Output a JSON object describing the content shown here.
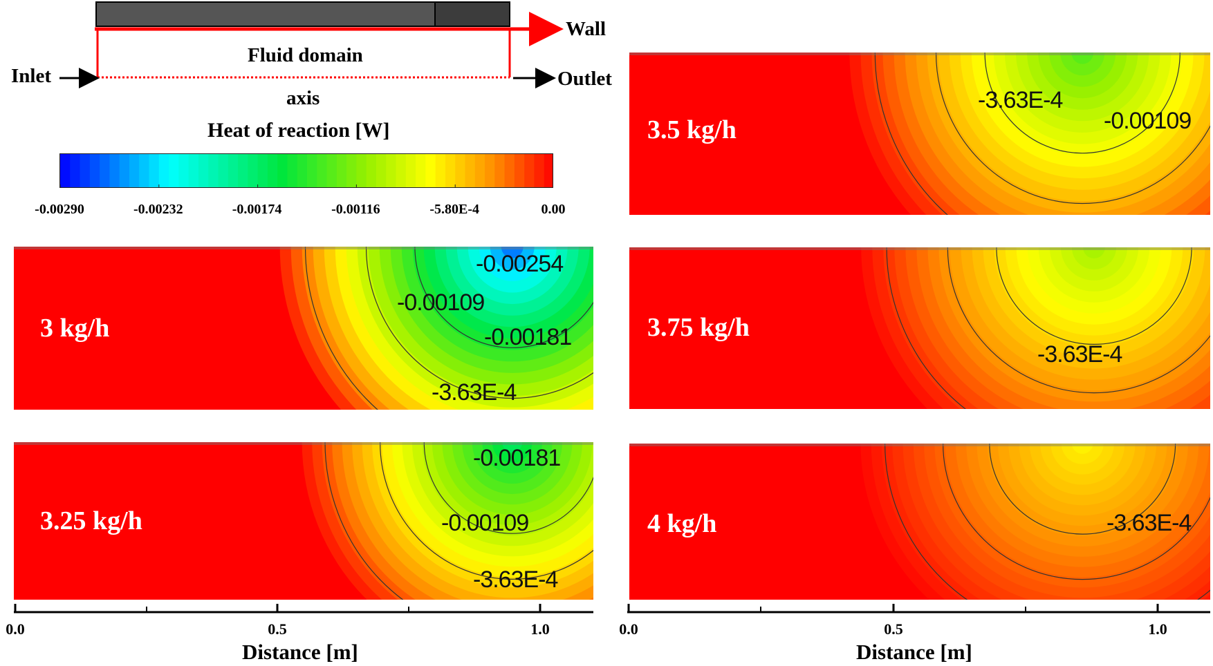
{
  "schematic": {
    "wall_label": "Wall",
    "fluid_label": "Fluid domain",
    "inlet_label": "Inlet",
    "outlet_label": "Outlet",
    "axis_label": "axis",
    "colors": {
      "wall": "#ff0000",
      "tube_dark": "#555555",
      "tube_darker": "#3c3c3c"
    }
  },
  "colorbar": {
    "title": "Heat of reaction [W]",
    "ticks": [
      "-0.00290",
      "-0.00232",
      "-0.00174",
      "-0.00116",
      "-5.80E-4",
      "0.00"
    ],
    "min": -0.0029,
    "max": 0.0
  },
  "panels": [
    {
      "id": "p3",
      "flow_label": "3 kg/h",
      "contour_labels": [
        "-0.00254",
        "-0.00109",
        "-0.00181",
        "-3.63E-4"
      ]
    },
    {
      "id": "p325",
      "flow_label": "3.25 kg/h",
      "contour_labels": [
        "-0.00181",
        "-0.00109",
        "-3.63E-4"
      ]
    },
    {
      "id": "p35",
      "flow_label": "3.5 kg/h",
      "contour_labels": [
        "-3.63E-4",
        "-0.00109"
      ]
    },
    {
      "id": "p375",
      "flow_label": "3.75 kg/h",
      "contour_labels": [
        "-3.63E-4"
      ]
    },
    {
      "id": "p4",
      "flow_label": "4 kg/h",
      "contour_labels": [
        "-3.63E-4"
      ]
    }
  ],
  "axes": {
    "xlabel": "Distance [m]",
    "ticks": [
      "0.0",
      "0.5",
      "1.0"
    ]
  }
}
